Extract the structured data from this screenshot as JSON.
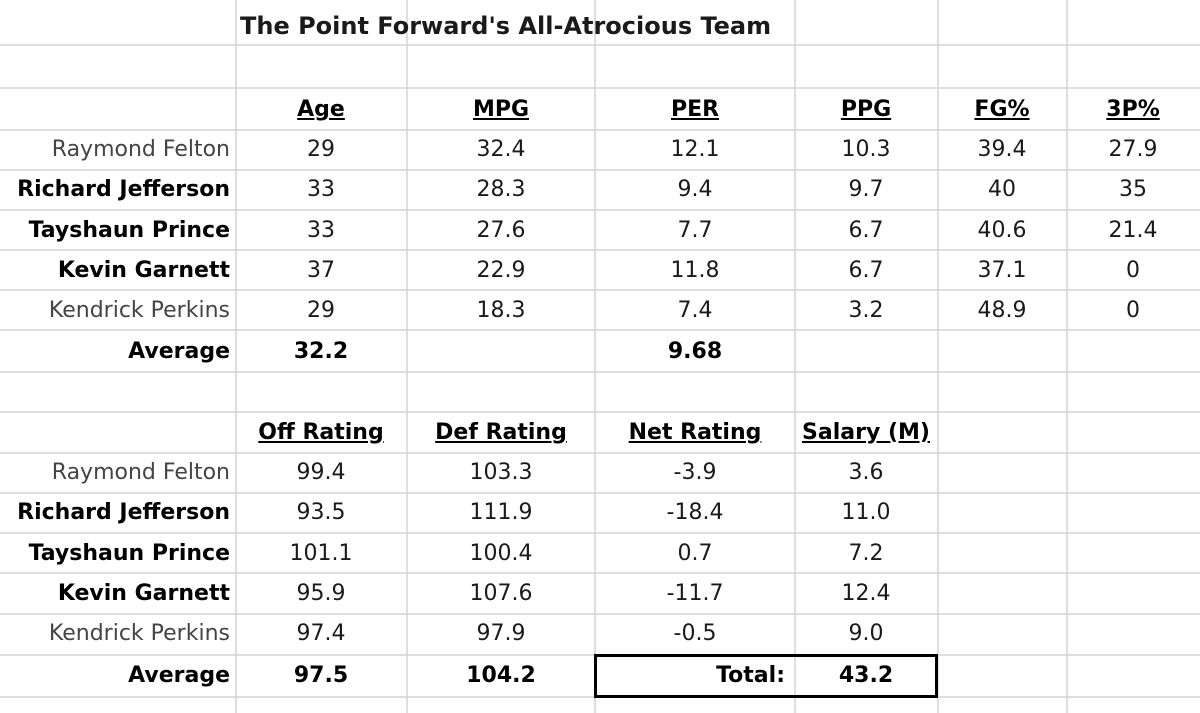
{
  "title": "The Point Forward's All-Atrocious Team",
  "table1": {
    "columns": [
      "Age",
      "MPG",
      "PER",
      "PPG",
      "FG%",
      "3P%"
    ],
    "rows": [
      {
        "name": "Raymond Felton",
        "cells": [
          "29",
          "32.4",
          "12.1",
          "10.3",
          "39.4",
          "27.9"
        ]
      },
      {
        "name": "Richard Jefferson",
        "cells": [
          "33",
          "28.3",
          "9.4",
          "9.7",
          "40",
          "35"
        ]
      },
      {
        "name": "Tayshaun Prince",
        "cells": [
          "33",
          "27.6",
          "7.7",
          "6.7",
          "40.6",
          "21.4"
        ]
      },
      {
        "name": "Kevin Garnett",
        "cells": [
          "37",
          "22.9",
          "11.8",
          "6.7",
          "37.1",
          "0"
        ]
      },
      {
        "name": "Kendrick Perkins",
        "cells": [
          "29",
          "18.3",
          "7.4",
          "3.2",
          "48.9",
          "0"
        ]
      }
    ],
    "average": {
      "label": "Average",
      "age": "32.2",
      "per": "9.68"
    }
  },
  "table2": {
    "columns": [
      "Off Rating",
      "Def Rating",
      "Net Rating",
      "Salary (M)"
    ],
    "rows": [
      {
        "name": "Raymond Felton",
        "cells": [
          "99.4",
          "103.3",
          "-3.9",
          "3.6"
        ]
      },
      {
        "name": "Richard Jefferson",
        "cells": [
          "93.5",
          "111.9",
          "-18.4",
          "11.0"
        ]
      },
      {
        "name": "Tayshaun Prince",
        "cells": [
          "101.1",
          "100.4",
          "0.7",
          "7.2"
        ]
      },
      {
        "name": "Kevin Garnett",
        "cells": [
          "95.9",
          "107.6",
          "-11.7",
          "12.4"
        ]
      },
      {
        "name": "Kendrick Perkins",
        "cells": [
          "97.4",
          "97.9",
          "-0.5",
          "9.0"
        ]
      }
    ],
    "average": {
      "label": "Average",
      "cells": [
        "97.5",
        "104.2"
      ],
      "total_label": "Total:",
      "total": "43.2"
    }
  }
}
